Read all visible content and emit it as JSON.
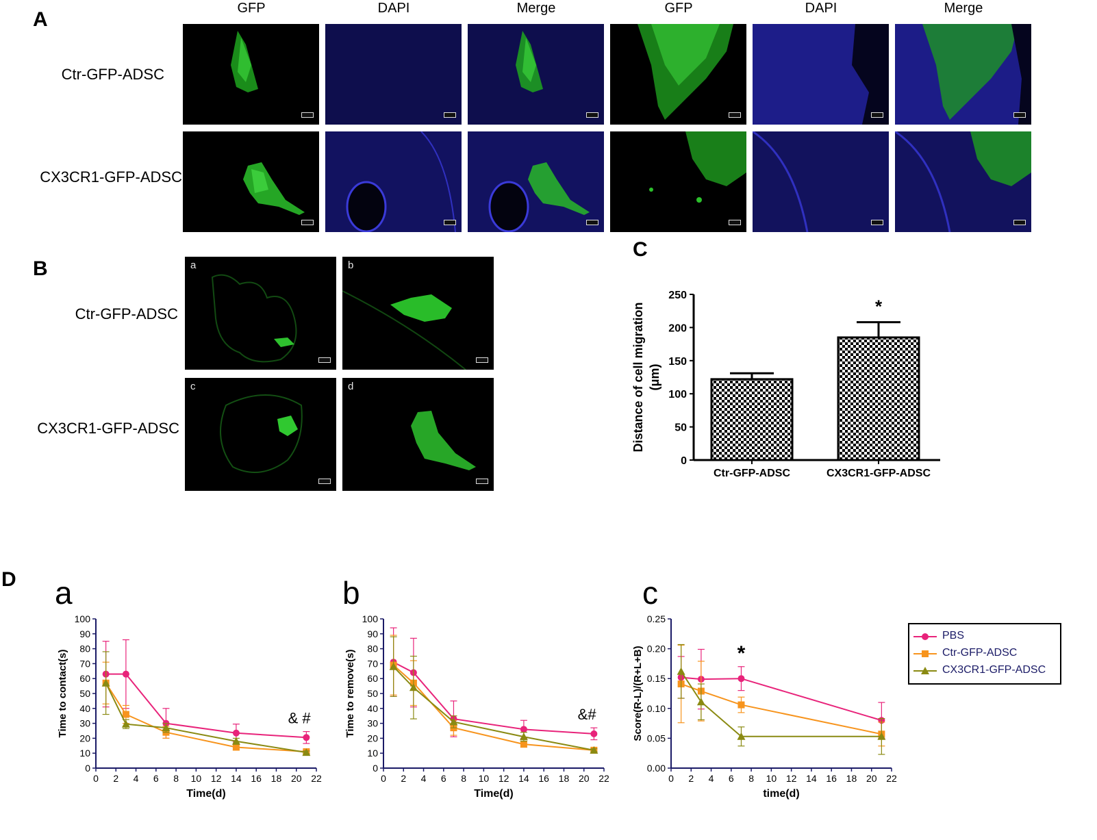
{
  "panelA": {
    "letter": "A",
    "column_headers": [
      "GFP",
      "DAPI",
      "Merge",
      "GFP",
      "DAPI",
      "Merge"
    ],
    "row_labels": [
      "Ctr-GFP-ADSC",
      "CX3CR1-GFP-ADSC"
    ]
  },
  "panelB": {
    "letter": "B",
    "row_labels": [
      "Ctr-GFP-ADSC",
      "CX3CR1-GFP-ADSC"
    ],
    "sub_letters": [
      "a",
      "b",
      "c",
      "d"
    ]
  },
  "panelC": {
    "letter": "C",
    "chart_data": {
      "type": "bar",
      "categories": [
        "Ctr-GFP-ADSC",
        "CX3CR1-GFP-ADSC"
      ],
      "values": [
        122,
        185
      ],
      "errors": [
        9,
        23
      ],
      "ylabel_line1": "Distance of cell migration",
      "ylabel_line2": "(μm)",
      "ylim": [
        0,
        250
      ],
      "yticks": [
        0,
        50,
        100,
        150,
        200,
        250
      ],
      "annotation": "*",
      "pattern": "checkerboard"
    }
  },
  "panelD": {
    "letter": "D",
    "legend": [
      "PBS",
      "Ctr-GFP-ADSC",
      "CX3CR1-GFP-ADSC"
    ],
    "colors": {
      "PBS": "#e8237a",
      "Ctr": "#f7941d",
      "CX3CR1": "#8a8a12",
      "axis": "#1a1a66"
    },
    "chart_data": [
      {
        "type": "line",
        "sub_letter": "a",
        "xlabel": "Time(d)",
        "ylabel": "Time to contact(s)",
        "xlim": [
          0,
          22
        ],
        "ylim": [
          0,
          100
        ],
        "xticks": [
          0,
          2,
          4,
          6,
          8,
          10,
          12,
          14,
          16,
          18,
          20,
          22
        ],
        "yticks": [
          0,
          10,
          20,
          30,
          40,
          50,
          60,
          70,
          80,
          90,
          100
        ],
        "x": [
          1,
          3,
          7,
          14,
          21
        ],
        "series": [
          {
            "name": "PBS",
            "values": [
              63,
              63,
              30,
              23.5,
              20.5
            ],
            "errors": [
              22,
              23,
              10,
              6,
              4
            ]
          },
          {
            "name": "Ctr-GFP-ADSC",
            "values": [
              57,
              36,
              24,
              14,
              11
            ],
            "errors": [
              14,
              6,
              4,
              2,
              1
            ]
          },
          {
            "name": "CX3CR1-GFP-ADSC",
            "values": [
              57,
              29.5,
              27,
              18,
              10.5
            ],
            "errors": [
              21,
              3,
              3,
              2,
              1
            ]
          }
        ],
        "annotation": "& #"
      },
      {
        "type": "line",
        "sub_letter": "b",
        "xlabel": "Time(d)",
        "ylabel": "Time to remove(s)",
        "xlim": [
          0,
          22
        ],
        "ylim": [
          0,
          100
        ],
        "xticks": [
          0,
          2,
          4,
          6,
          8,
          10,
          12,
          14,
          16,
          18,
          20,
          22
        ],
        "yticks": [
          0,
          10,
          20,
          30,
          40,
          50,
          60,
          70,
          80,
          90,
          100
        ],
        "x": [
          1,
          3,
          7,
          14,
          21
        ],
        "series": [
          {
            "name": "PBS",
            "values": [
              71,
              64,
              33,
              26,
              23
            ],
            "errors": [
              23,
              23,
              12,
              6,
              4
            ]
          },
          {
            "name": "Ctr-GFP-ADSC",
            "values": [
              69,
              57,
              27,
              16,
              12
            ],
            "errors": [
              20,
              15,
              5,
              2,
              1
            ]
          },
          {
            "name": "CX3CR1-GFP-ADSC",
            "values": [
              68,
              54,
              31,
              21,
              12
            ],
            "errors": [
              20,
              21,
              4,
              3,
              1
            ]
          }
        ],
        "annotation": "&#"
      },
      {
        "type": "line",
        "sub_letter": "c",
        "xlabel": "time(d)",
        "ylabel": "Score(R-L)/(R+L+B)",
        "xlim": [
          0,
          22
        ],
        "ylim": [
          0,
          0.25
        ],
        "xticks": [
          0,
          2,
          4,
          6,
          8,
          10,
          12,
          14,
          16,
          18,
          20,
          22
        ],
        "yticks": [
          0.0,
          0.05,
          0.1,
          0.15,
          0.2,
          0.25
        ],
        "x": [
          1,
          3,
          7,
          21
        ],
        "series": [
          {
            "name": "PBS",
            "values": [
              0.152,
              0.149,
              0.15,
              0.08
            ],
            "errors": [
              0.035,
              0.05,
              0.02,
              0.03
            ]
          },
          {
            "name": "Ctr-GFP-ADSC",
            "values": [
              0.141,
              0.129,
              0.106,
              0.057
            ],
            "errors": [
              0.065,
              0.05,
              0.013,
              0.02
            ]
          },
          {
            "name": "CX3CR1-GFP-ADSC",
            "values": [
              0.162,
              0.111,
              0.053,
              0.053
            ],
            "errors": [
              0.045,
              0.03,
              0.016,
              0.03
            ]
          }
        ],
        "annotation": "*"
      }
    ]
  }
}
